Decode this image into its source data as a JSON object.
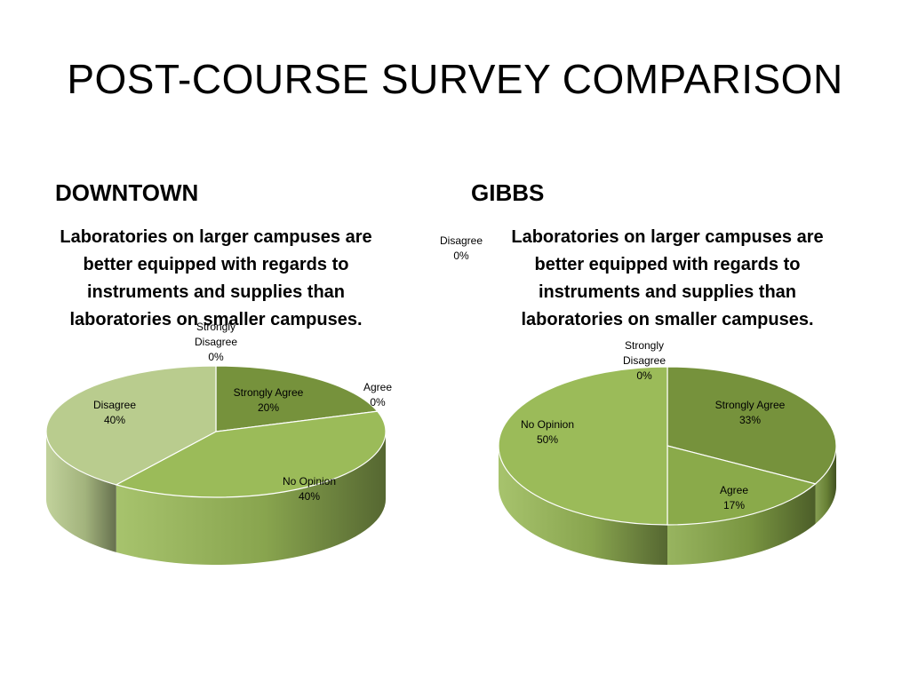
{
  "slide": {
    "title": "POST-COURSE SURVEY COMPARISON"
  },
  "colors": {
    "strongly_agree": "#76923c",
    "agree": "#8aaa4a",
    "no_opinion": "#9bbb59",
    "disagree": "#b9cc8e",
    "strongly_disagree": "#c6d5a4"
  },
  "chart_data": [
    {
      "type": "pie",
      "campus": "DOWNTOWN",
      "title": "Laboratories on larger campuses are better equipped with regards to instruments and supplies than laboratories on smaller campuses.",
      "slices": [
        {
          "label": "Strongly Agree",
          "value": 20,
          "pct_label": "20%"
        },
        {
          "label": "Agree",
          "value": 0,
          "pct_label": "0%"
        },
        {
          "label": "No Opinion",
          "value": 40,
          "pct_label": "40%"
        },
        {
          "label": "Disagree",
          "value": 40,
          "pct_label": "40%"
        },
        {
          "label": "Strongly Disagree",
          "value": 0,
          "pct_label": "0%"
        }
      ]
    },
    {
      "type": "pie",
      "campus": "GIBBS",
      "title": "Laboratories on larger campuses are better equipped with regards to instruments and supplies than laboratories on smaller campuses.",
      "slices": [
        {
          "label": "Strongly Agree",
          "value": 33,
          "pct_label": "33%"
        },
        {
          "label": "Agree",
          "value": 17,
          "pct_label": "17%"
        },
        {
          "label": "No Opinion",
          "value": 50,
          "pct_label": "50%"
        },
        {
          "label": "Disagree",
          "value": 0,
          "pct_label": "0%"
        },
        {
          "label": "Strongly Disagree",
          "value": 0,
          "pct_label": "0%"
        }
      ]
    }
  ]
}
